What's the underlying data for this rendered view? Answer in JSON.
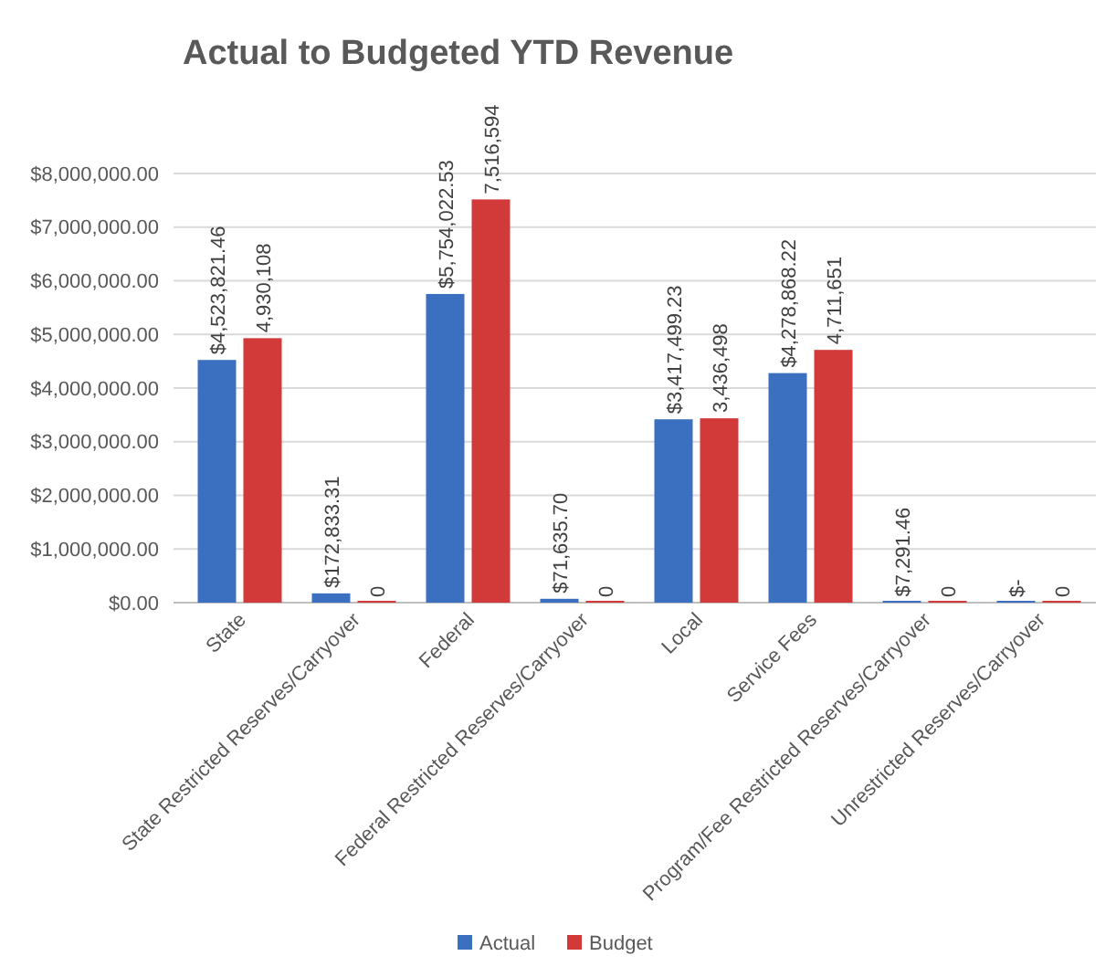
{
  "chart_data": {
    "type": "bar",
    "title": "Actual to Budgeted YTD Revenue",
    "categories": [
      "State",
      "State Restricted Reserves/Carryover",
      "Federal",
      "Federal Restricted Reserves/Carryover",
      "Local",
      "Service Fees",
      "Program/Fee Restricted Reserves/Carryover",
      "Unrestricted Reserves/Carryover"
    ],
    "series": [
      {
        "name": "Actual",
        "color": "#3b6fc0",
        "values": [
          4523821.46,
          172833.31,
          5754022.53,
          71635.7,
          3417499.23,
          4278868.22,
          7291.46,
          0
        ],
        "value_labels": [
          "$4,523,821.46",
          "$172,833.31",
          "$5,754,022.53",
          "$71,635.70",
          "$3,417,499.23",
          "$4,278,868.22",
          "$7,291.46",
          "$-"
        ]
      },
      {
        "name": "Budget",
        "color": "#d23a3a",
        "values": [
          4930108,
          0,
          7516594,
          0,
          3436498,
          4711651,
          0,
          0
        ],
        "value_labels": [
          "4,930,108",
          "0",
          "7,516,594",
          "0",
          "3,436,498",
          "4,711,651",
          "0",
          "0"
        ]
      }
    ],
    "ylim": [
      0,
      8000000
    ],
    "yticks": [
      {
        "value": 0,
        "label": "$0.00"
      },
      {
        "value": 1000000,
        "label": "$1,000,000.00"
      },
      {
        "value": 2000000,
        "label": "$2,000,000.00"
      },
      {
        "value": 3000000,
        "label": "$3,000,000.00"
      },
      {
        "value": 4000000,
        "label": "$4,000,000.00"
      },
      {
        "value": 5000000,
        "label": "$5,000,000.00"
      },
      {
        "value": 6000000,
        "label": "$6,000,000.00"
      },
      {
        "value": 7000000,
        "label": "$7,000,000.00"
      },
      {
        "value": 8000000,
        "label": "$8,000,000.00"
      }
    ],
    "grid": "y",
    "legend": "bottom"
  }
}
